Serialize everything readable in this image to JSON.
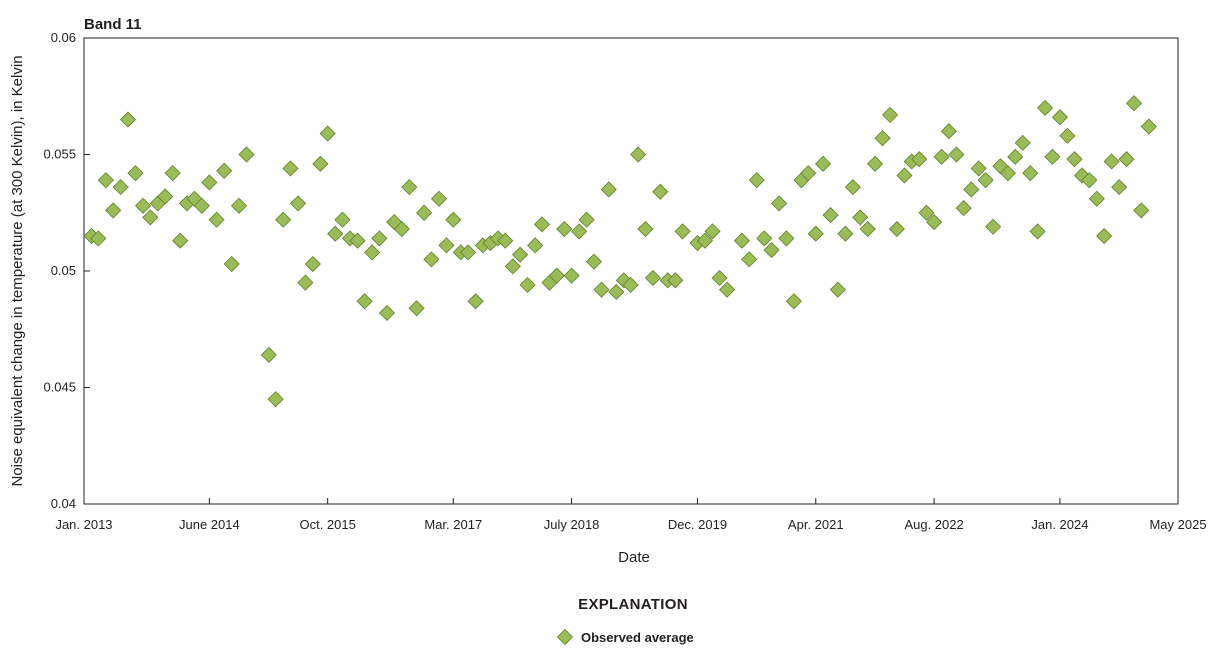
{
  "chart_data": {
    "type": "scatter",
    "title": "Band 11",
    "xlabel": "Date",
    "ylabel": "Noise equivalent change in temperature (at 300 Kelvin), in Kelvin",
    "xlim": [
      "2013-01-01",
      "2025-05-01"
    ],
    "ylim": [
      0.04,
      0.06
    ],
    "grid": false,
    "x_ticks": [
      {
        "date": "2013-01-01",
        "label": "Jan. 2013"
      },
      {
        "date": "2014-06-01",
        "label": "June 2014"
      },
      {
        "date": "2015-10-01",
        "label": "Oct. 2015"
      },
      {
        "date": "2017-03-01",
        "label": "Mar. 2017"
      },
      {
        "date": "2018-07-01",
        "label": "July 2018"
      },
      {
        "date": "2019-12-01",
        "label": "Dec. 2019"
      },
      {
        "date": "2021-04-01",
        "label": "Apr. 2021"
      },
      {
        "date": "2022-08-01",
        "label": "Aug. 2022"
      },
      {
        "date": "2024-01-01",
        "label": "Jan. 2024"
      },
      {
        "date": "2025-05-01",
        "label": "May 2025"
      }
    ],
    "y_ticks": [
      {
        "value": 0.04,
        "label": "0.04"
      },
      {
        "value": 0.045,
        "label": "0.045"
      },
      {
        "value": 0.05,
        "label": "0.05"
      },
      {
        "value": 0.055,
        "label": "0.055"
      },
      {
        "value": 0.06,
        "label": "0.06"
      }
    ],
    "legend": {
      "title": "EXPLANATION",
      "position": "bottom-center"
    },
    "series": [
      {
        "name": "Observed average",
        "marker": "diamond",
        "color": "#9bbb59",
        "edge_color": "#5f7f2c",
        "points": [
          [
            "2013-02-01",
            0.0515
          ],
          [
            "2013-03-01",
            0.0514
          ],
          [
            "2013-04-01",
            0.0539
          ],
          [
            "2013-05-01",
            0.0526
          ],
          [
            "2013-06-01",
            0.0536
          ],
          [
            "2013-07-01",
            0.0565
          ],
          [
            "2013-08-01",
            0.0542
          ],
          [
            "2013-09-01",
            0.0528
          ],
          [
            "2013-10-01",
            0.0523
          ],
          [
            "2013-11-01",
            0.0529
          ],
          [
            "2013-12-01",
            0.0532
          ],
          [
            "2014-01-01",
            0.0542
          ],
          [
            "2014-02-01",
            0.0513
          ],
          [
            "2014-03-01",
            0.0529
          ],
          [
            "2014-04-01",
            0.0531
          ],
          [
            "2014-05-01",
            0.0528
          ],
          [
            "2014-06-01",
            0.0538
          ],
          [
            "2014-07-01",
            0.0522
          ],
          [
            "2014-08-01",
            0.0543
          ],
          [
            "2014-09-01",
            0.0503
          ],
          [
            "2014-10-01",
            0.0528
          ],
          [
            "2014-11-01",
            0.055
          ],
          [
            "2015-02-01",
            0.0464
          ],
          [
            "2015-03-01",
            0.0445
          ],
          [
            "2015-04-01",
            0.0522
          ],
          [
            "2015-05-01",
            0.0544
          ],
          [
            "2015-06-01",
            0.0529
          ],
          [
            "2015-07-01",
            0.0495
          ],
          [
            "2015-08-01",
            0.0503
          ],
          [
            "2015-09-01",
            0.0546
          ],
          [
            "2015-10-01",
            0.0559
          ],
          [
            "2015-11-01",
            0.0516
          ],
          [
            "2015-12-01",
            0.0522
          ],
          [
            "2016-01-01",
            0.0514
          ],
          [
            "2016-02-01",
            0.0513
          ],
          [
            "2016-03-01",
            0.0487
          ],
          [
            "2016-04-01",
            0.0508
          ],
          [
            "2016-05-01",
            0.0514
          ],
          [
            "2016-06-01",
            0.0482
          ],
          [
            "2016-07-01",
            0.0521
          ],
          [
            "2016-08-01",
            0.0518
          ],
          [
            "2016-09-01",
            0.0536
          ],
          [
            "2016-10-01",
            0.0484
          ],
          [
            "2016-11-01",
            0.0525
          ],
          [
            "2016-12-01",
            0.0505
          ],
          [
            "2017-01-01",
            0.0531
          ],
          [
            "2017-02-01",
            0.0511
          ],
          [
            "2017-03-01",
            0.0522
          ],
          [
            "2017-04-01",
            0.0508
          ],
          [
            "2017-05-01",
            0.0508
          ],
          [
            "2017-06-01",
            0.0487
          ],
          [
            "2017-07-01",
            0.0511
          ],
          [
            "2017-08-01",
            0.0512
          ],
          [
            "2017-09-01",
            0.0514
          ],
          [
            "2017-10-01",
            0.0513
          ],
          [
            "2017-11-01",
            0.0502
          ],
          [
            "2017-12-01",
            0.0507
          ],
          [
            "2018-01-01",
            0.0494
          ],
          [
            "2018-02-01",
            0.0511
          ],
          [
            "2018-03-01",
            0.052
          ],
          [
            "2018-04-01",
            0.0495
          ],
          [
            "2018-05-01",
            0.0498
          ],
          [
            "2018-06-01",
            0.0518
          ],
          [
            "2018-07-01",
            0.0498
          ],
          [
            "2018-08-01",
            0.0517
          ],
          [
            "2018-09-01",
            0.0522
          ],
          [
            "2018-10-01",
            0.0504
          ],
          [
            "2018-11-01",
            0.0492
          ],
          [
            "2018-12-01",
            0.0535
          ],
          [
            "2019-01-01",
            0.0491
          ],
          [
            "2019-02-01",
            0.0496
          ],
          [
            "2019-03-01",
            0.0494
          ],
          [
            "2019-04-01",
            0.055
          ],
          [
            "2019-05-01",
            0.0518
          ],
          [
            "2019-06-01",
            0.0497
          ],
          [
            "2019-07-01",
            0.0534
          ],
          [
            "2019-08-01",
            0.0496
          ],
          [
            "2019-09-01",
            0.0496
          ],
          [
            "2019-10-01",
            0.0517
          ],
          [
            "2019-12-01",
            0.0512
          ],
          [
            "2020-01-01",
            0.0513
          ],
          [
            "2020-02-01",
            0.0517
          ],
          [
            "2020-03-01",
            0.0497
          ],
          [
            "2020-04-01",
            0.0492
          ],
          [
            "2020-06-01",
            0.0513
          ],
          [
            "2020-07-01",
            0.0505
          ],
          [
            "2020-08-01",
            0.0539
          ],
          [
            "2020-09-01",
            0.0514
          ],
          [
            "2020-10-01",
            0.0509
          ],
          [
            "2020-11-01",
            0.0529
          ],
          [
            "2020-12-01",
            0.0514
          ],
          [
            "2021-01-01",
            0.0487
          ],
          [
            "2021-02-01",
            0.0539
          ],
          [
            "2021-03-01",
            0.0542
          ],
          [
            "2021-04-01",
            0.0516
          ],
          [
            "2021-05-01",
            0.0546
          ],
          [
            "2021-06-01",
            0.0524
          ],
          [
            "2021-07-01",
            0.0492
          ],
          [
            "2021-08-01",
            0.0516
          ],
          [
            "2021-09-01",
            0.0536
          ],
          [
            "2021-10-01",
            0.0523
          ],
          [
            "2021-11-01",
            0.0518
          ],
          [
            "2021-12-01",
            0.0546
          ],
          [
            "2022-01-01",
            0.0557
          ],
          [
            "2022-02-01",
            0.0567
          ],
          [
            "2022-03-01",
            0.0518
          ],
          [
            "2022-04-01",
            0.0541
          ],
          [
            "2022-05-01",
            0.0547
          ],
          [
            "2022-06-01",
            0.0548
          ],
          [
            "2022-07-01",
            0.0525
          ],
          [
            "2022-08-01",
            0.0521
          ],
          [
            "2022-09-01",
            0.0549
          ],
          [
            "2022-10-01",
            0.056
          ],
          [
            "2022-11-01",
            0.055
          ],
          [
            "2022-12-01",
            0.0527
          ],
          [
            "2023-01-01",
            0.0535
          ],
          [
            "2023-02-01",
            0.0544
          ],
          [
            "2023-03-01",
            0.0539
          ],
          [
            "2023-04-01",
            0.0519
          ],
          [
            "2023-05-01",
            0.0545
          ],
          [
            "2023-06-01",
            0.0542
          ],
          [
            "2023-07-01",
            0.0549
          ],
          [
            "2023-08-01",
            0.0555
          ],
          [
            "2023-09-01",
            0.0542
          ],
          [
            "2023-10-01",
            0.0517
          ],
          [
            "2023-11-01",
            0.057
          ],
          [
            "2023-12-01",
            0.0549
          ],
          [
            "2024-01-01",
            0.0566
          ],
          [
            "2024-02-01",
            0.0558
          ],
          [
            "2024-03-01",
            0.0548
          ],
          [
            "2024-04-01",
            0.0541
          ],
          [
            "2024-05-01",
            0.0539
          ],
          [
            "2024-06-01",
            0.0531
          ],
          [
            "2024-07-01",
            0.0515
          ],
          [
            "2024-08-01",
            0.0547
          ],
          [
            "2024-09-01",
            0.0536
          ],
          [
            "2024-10-01",
            0.0548
          ],
          [
            "2024-11-01",
            0.0572
          ],
          [
            "2024-12-01",
            0.0526
          ],
          [
            "2025-01-01",
            0.0562
          ]
        ]
      }
    ]
  }
}
